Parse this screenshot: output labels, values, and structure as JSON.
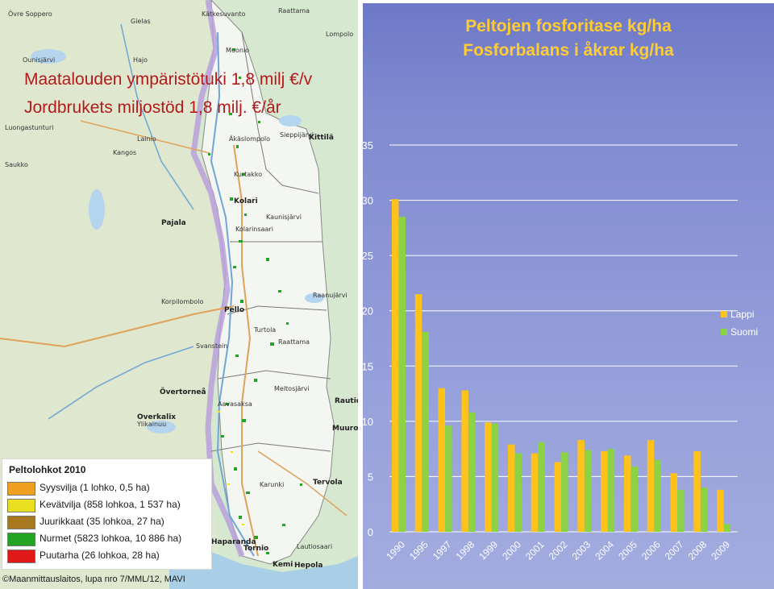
{
  "map": {
    "title_fi": "Maatalouden ympäristötuki 1,8 milj €/v",
    "title_sv": "Jordbrukets miljostöd 1,8 milj. €/år",
    "places": [
      "Övre Soppero",
      "Kätkesuvanto",
      "Raattama",
      "Gielas",
      "Lompolo",
      "Ounisjärvi",
      "Hajo",
      "Muonio",
      "Luongastunturi",
      "Äkäslompolo",
      "Kittilä",
      "Lainio",
      "Kangos",
      "Kurtakko",
      "Saukko",
      "Kolari",
      "Pajala",
      "Kaunisjärvi",
      "Kolarinsaari",
      "Sieppijärvi",
      "Korpilombolo",
      "Pello",
      "Turtola",
      "Raanujärvi",
      "Svanstein",
      "Meltosjärvi",
      "Övertorneå",
      "Aavasaksa",
      "Raattama",
      "Overkalix",
      "Ylikainuu",
      "Rautiosaari",
      "Muurola",
      "Tervola",
      "Karunki",
      "Haparanda",
      "Tornio",
      "Kemi",
      "Lautiosaari",
      "Hepola"
    ],
    "legend": {
      "title": "Peltolohkot 2010",
      "items": [
        {
          "label": "Syysvilja (1 lohko, 0,5 ha)",
          "color": "#f0a020"
        },
        {
          "label": "Kevätvilja (858 lohkoa, 1 537 ha)",
          "color": "#e8e020"
        },
        {
          "label": "Juurikkaat (35 lohkoa, 27 ha)",
          "color": "#a8781e"
        },
        {
          "label": "Nurmet (5823 lohkoa, 10 886 ha)",
          "color": "#22a322"
        },
        {
          "label": "Puutarha (26 lohkoa, 28 ha)",
          "color": "#e01818"
        }
      ]
    },
    "copyright": "©Maanmittauslaitos, lupa nro 7/MML/12, MAVI"
  },
  "chart": {
    "title_fi": "Peltojen fosforitase kg/ha",
    "title_sv": "Fosforbalans i åkrar kg/ha"
  },
  "chart_data": {
    "type": "bar",
    "title": "Peltojen fosforitase kg/ha / Fosforbalans i åkrar kg/ha",
    "xlabel": "",
    "ylabel": "",
    "ylim": [
      0,
      35
    ],
    "yticks": [
      0,
      5,
      10,
      15,
      20,
      25,
      30,
      35
    ],
    "grid": true,
    "legend_position": "right",
    "categories": [
      "1990",
      "1995",
      "1997",
      "1998",
      "1999",
      "2000",
      "2001",
      "2002",
      "2003",
      "2004",
      "2005",
      "2006",
      "2007",
      "2008",
      "2009"
    ],
    "series": [
      {
        "name": "Lappi",
        "color": "#ffc21a",
        "values": [
          30.1,
          21.5,
          13.0,
          12.8,
          9.9,
          7.9,
          7.1,
          6.3,
          8.3,
          7.3,
          6.9,
          8.3,
          5.3,
          7.3,
          3.8
        ]
      },
      {
        "name": "Suomi",
        "color": "#8cd245",
        "values": [
          28.5,
          18.1,
          9.6,
          10.8,
          9.8,
          7.1,
          8.1,
          7.2,
          7.4,
          7.5,
          5.9,
          6.5,
          3.8,
          4.0,
          0.7
        ]
      }
    ]
  }
}
